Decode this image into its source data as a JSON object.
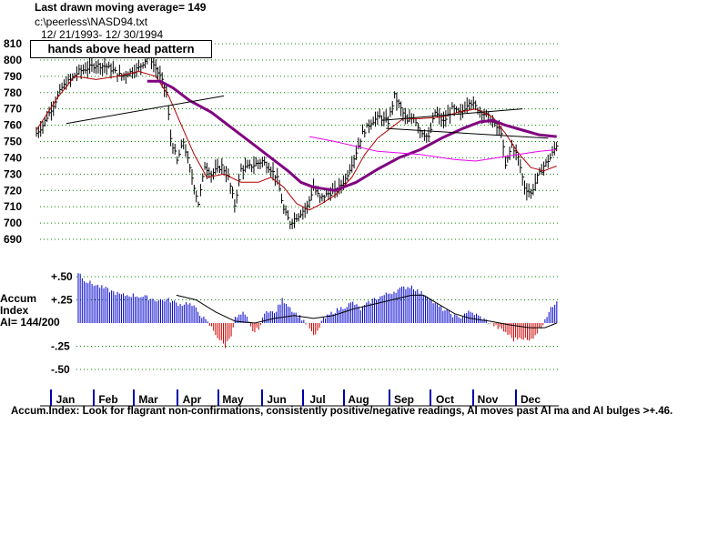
{
  "header": {
    "line1": "Last drawn moving average= 149",
    "line2": "c:\\peerless\\NASD94.txt",
    "line3": "12/ 21/1993- 12/ 30/1994"
  },
  "annotation": {
    "pattern": "hands above head pattern"
  },
  "ai_panel": {
    "label1": "Accum",
    "label2": "Index",
    "label3": "AI= 144/200"
  },
  "footer": "Accum.Index: Look for flagrant non-confirmations, consistently positive/negative readings, AI moves past AI ma and AI bulges >+.46.",
  "colors": {
    "price": "#000000",
    "ma_short": "#b00000",
    "ma_long": "#800080",
    "ma_mid": "#ee00ee",
    "ai_pos": "#0000cc",
    "ai_neg": "#cc0000",
    "grid": "#008800"
  },
  "chart_data": [
    {
      "type": "line",
      "subtype": "ohlc-bars",
      "y_ticks": [
        810,
        800,
        790,
        780,
        770,
        760,
        750,
        740,
        730,
        720,
        710,
        700,
        690
      ],
      "ylim": [
        690,
        810
      ],
      "x_labels": [
        "Jan",
        "Feb",
        "Mar",
        "Apr",
        "May",
        "Jun",
        "Jul",
        "Aug",
        "Sep",
        "Oct",
        "Nov",
        "Dec"
      ],
      "close_keypoints": [
        [
          0,
          755
        ],
        [
          3,
          760
        ],
        [
          7,
          770
        ],
        [
          12,
          783
        ],
        [
          20,
          793
        ],
        [
          28,
          797
        ],
        [
          33,
          796
        ],
        [
          40,
          790
        ],
        [
          48,
          795
        ],
        [
          53,
          803
        ],
        [
          55,
          797
        ],
        [
          58,
          790
        ],
        [
          61,
          780
        ],
        [
          63,
          752
        ],
        [
          66,
          738
        ],
        [
          69,
          750
        ],
        [
          72,
          733
        ],
        [
          76,
          712
        ],
        [
          79,
          735
        ],
        [
          82,
          730
        ],
        [
          87,
          735
        ],
        [
          90,
          728
        ],
        [
          93,
          711
        ],
        [
          96,
          733
        ],
        [
          101,
          735
        ],
        [
          106,
          738
        ],
        [
          110,
          733
        ],
        [
          113,
          727
        ],
        [
          116,
          708
        ],
        [
          119,
          700
        ],
        [
          123,
          705
        ],
        [
          127,
          710
        ],
        [
          130,
          722
        ],
        [
          133,
          715
        ],
        [
          137,
          718
        ],
        [
          141,
          720
        ],
        [
          145,
          727
        ],
        [
          149,
          740
        ],
        [
          153,
          755
        ],
        [
          157,
          762
        ],
        [
          161,
          765
        ],
        [
          165,
          762
        ],
        [
          168,
          778
        ],
        [
          171,
          770
        ],
        [
          174,
          762
        ],
        [
          177,
          765
        ],
        [
          180,
          757
        ],
        [
          184,
          752
        ],
        [
          187,
          768
        ],
        [
          191,
          762
        ],
        [
          195,
          770
        ],
        [
          199,
          767
        ],
        [
          203,
          775
        ],
        [
          207,
          770
        ],
        [
          212,
          765
        ],
        [
          215,
          760
        ],
        [
          218,
          756
        ],
        [
          220,
          735
        ],
        [
          223,
          748
        ],
        [
          226,
          740
        ],
        [
          229,
          722
        ],
        [
          232,
          718
        ],
        [
          235,
          728
        ],
        [
          238,
          735
        ],
        [
          241,
          740
        ],
        [
          244,
          748
        ]
      ],
      "series": [
        {
          "name": "",
          "points": [
            [
              0,
              757
            ],
            [
              10,
              777
            ],
            [
              18,
              790
            ],
            [
              28,
              788
            ],
            [
              38,
              790
            ],
            [
              48,
              793
            ],
            [
              56,
              790
            ],
            [
              62,
              778
            ],
            [
              68,
              760
            ],
            [
              74,
              742
            ],
            [
              80,
              728
            ],
            [
              88,
              730
            ],
            [
              96,
              725
            ],
            [
              104,
              725
            ],
            [
              110,
              728
            ],
            [
              116,
              722
            ],
            [
              122,
              712
            ],
            [
              128,
              708
            ],
            [
              134,
              712
            ],
            [
              140,
              717
            ],
            [
              148,
              728
            ],
            [
              154,
              742
            ],
            [
              160,
              752
            ],
            [
              166,
              758
            ],
            [
              172,
              764
            ],
            [
              180,
              764
            ],
            [
              190,
              765
            ],
            [
              198,
              768
            ],
            [
              206,
              770
            ],
            [
              214,
              765
            ],
            [
              220,
              755
            ],
            [
              226,
              743
            ],
            [
              232,
              734
            ],
            [
              238,
              732
            ],
            [
              244,
              735
            ]
          ]
        },
        {
          "name": "",
          "points": [
            [
              52,
              787
            ],
            [
              58,
              787
            ],
            [
              64,
              783
            ],
            [
              72,
              775
            ],
            [
              82,
              768
            ],
            [
              92,
              758
            ],
            [
              102,
              748
            ],
            [
              110,
              740
            ],
            [
              118,
              732
            ],
            [
              124,
              725
            ],
            [
              130,
              722
            ],
            [
              140,
              720
            ],
            [
              150,
              725
            ],
            [
              160,
              733
            ],
            [
              170,
              740
            ],
            [
              180,
              745
            ],
            [
              190,
              752
            ],
            [
              200,
              758
            ],
            [
              208,
              762
            ],
            [
              214,
              763
            ],
            [
              220,
              760
            ],
            [
              228,
              757
            ],
            [
              236,
              754
            ],
            [
              244,
              753
            ]
          ]
        },
        {
          "name": "",
          "points": [
            [
              128,
              753
            ],
            [
              140,
              750
            ],
            [
              160,
              744
            ],
            [
              180,
              742
            ],
            [
              196,
              739
            ],
            [
              206,
              738
            ],
            [
              216,
              740
            ],
            [
              226,
              742
            ],
            [
              236,
              744
            ],
            [
              244,
              745
            ]
          ]
        }
      ]
    },
    {
      "type": "bar",
      "subtype": "accumulation-index",
      "y_ticks": [
        0.5,
        0.25,
        -0.25,
        -0.5
      ],
      "y_tick_labels": [
        "+.50",
        "+.25",
        "-.25",
        "-.50"
      ],
      "ylim": [
        -0.6,
        0.6
      ],
      "keypoints": [
        [
          0,
          0.55
        ],
        [
          4,
          0.45
        ],
        [
          10,
          0.4
        ],
        [
          16,
          0.35
        ],
        [
          22,
          0.3
        ],
        [
          28,
          0.3
        ],
        [
          34,
          0.28
        ],
        [
          40,
          0.25
        ],
        [
          46,
          0.25
        ],
        [
          52,
          0.2
        ],
        [
          56,
          0.22
        ],
        [
          60,
          0.15
        ],
        [
          64,
          0.05
        ],
        [
          68,
          -0.05
        ],
        [
          72,
          -0.18
        ],
        [
          75,
          -0.25
        ],
        [
          78,
          -0.12
        ],
        [
          80,
          0.05
        ],
        [
          84,
          0.1
        ],
        [
          86,
          0.05
        ],
        [
          88,
          -0.05
        ],
        [
          90,
          -0.1
        ],
        [
          93,
          -0.02
        ],
        [
          96,
          0.15
        ],
        [
          100,
          0.1
        ],
        [
          104,
          0.25
        ],
        [
          106,
          0.22
        ],
        [
          110,
          0.12
        ],
        [
          114,
          0.05
        ],
        [
          116,
          0.0
        ],
        [
          118,
          -0.05
        ],
        [
          120,
          -0.15
        ],
        [
          122,
          -0.1
        ],
        [
          124,
          0.02
        ],
        [
          130,
          0.12
        ],
        [
          136,
          0.18
        ],
        [
          140,
          0.22
        ],
        [
          144,
          0.15
        ],
        [
          150,
          0.25
        ],
        [
          156,
          0.3
        ],
        [
          162,
          0.35
        ],
        [
          166,
          0.38
        ],
        [
          170,
          0.4
        ],
        [
          174,
          0.33
        ],
        [
          178,
          0.3
        ],
        [
          182,
          0.2
        ],
        [
          186,
          0.15
        ],
        [
          190,
          0.1
        ],
        [
          194,
          0.05
        ],
        [
          198,
          0.12
        ],
        [
          202,
          0.1
        ],
        [
          206,
          0.05
        ],
        [
          210,
          0.0
        ],
        [
          214,
          -0.05
        ],
        [
          218,
          -0.1
        ],
        [
          222,
          -0.18
        ],
        [
          226,
          -0.15
        ],
        [
          230,
          -0.2
        ],
        [
          233,
          -0.12
        ],
        [
          236,
          -0.05
        ],
        [
          238,
          0.05
        ],
        [
          241,
          0.15
        ],
        [
          244,
          0.25
        ]
      ],
      "ma_points": [
        [
          50,
          0.3
        ],
        [
          60,
          0.25
        ],
        [
          70,
          0.12
        ],
        [
          80,
          0.02
        ],
        [
          90,
          0.0
        ],
        [
          100,
          0.05
        ],
        [
          110,
          0.08
        ],
        [
          120,
          0.05
        ],
        [
          130,
          0.08
        ],
        [
          140,
          0.15
        ],
        [
          150,
          0.2
        ],
        [
          160,
          0.25
        ],
        [
          170,
          0.3
        ],
        [
          176,
          0.3
        ],
        [
          184,
          0.2
        ],
        [
          192,
          0.1
        ],
        [
          200,
          0.05
        ],
        [
          210,
          0.02
        ],
        [
          220,
          -0.02
        ],
        [
          230,
          -0.05
        ],
        [
          238,
          -0.05
        ],
        [
          244,
          0.0
        ]
      ]
    }
  ]
}
